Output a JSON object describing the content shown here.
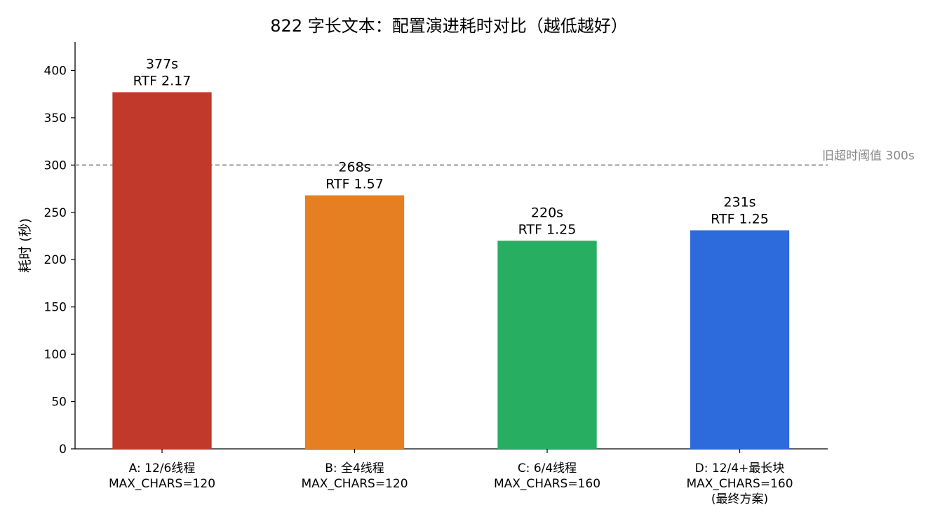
{
  "chart_data": {
    "type": "bar",
    "title": "822 字长文本：配置演进耗时对比（越低越好）",
    "xlabel": "",
    "ylabel": "耗时 (秒)",
    "ylim": [
      0,
      430
    ],
    "yticks": [
      0,
      50,
      100,
      150,
      200,
      250,
      300,
      350,
      400
    ],
    "grid": false,
    "categories": [
      [
        "A: 12/6线程",
        "MAX_CHARS=120"
      ],
      [
        "B: 全4线程",
        "MAX_CHARS=120"
      ],
      [
        "C: 6/4线程",
        "MAX_CHARS=160"
      ],
      [
        "D: 12/4+最长块",
        "MAX_CHARS=160",
        "(最终方案)"
      ]
    ],
    "values": [
      377,
      268,
      220,
      231
    ],
    "data_labels": [
      [
        "377s",
        "RTF 2.17"
      ],
      [
        "268s",
        "RTF 1.57"
      ],
      [
        "220s",
        "RTF 1.25"
      ],
      [
        "231s",
        "RTF 1.25"
      ]
    ],
    "colors": [
      "#c0392b",
      "#e67e22",
      "#27ae60",
      "#2d6bdd"
    ],
    "reference_line": {
      "value": 300,
      "label": "旧超时阈值 300s",
      "style": "dashed",
      "color": "#888888"
    }
  }
}
